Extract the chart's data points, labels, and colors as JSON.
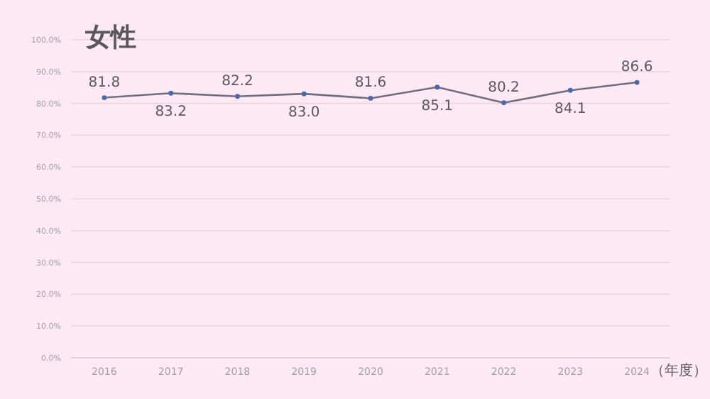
{
  "chart_data": {
    "type": "line",
    "title": "女性",
    "xlabel": "（年度）",
    "categories": [
      "2016",
      "2017",
      "2018",
      "2019",
      "2020",
      "2021",
      "2022",
      "2023",
      "2024"
    ],
    "series": [
      {
        "color": "#6e6e80",
        "values": [
          81.8,
          83.2,
          82.2,
          83.0,
          81.6,
          85.1,
          80.2,
          84.1,
          86.6
        ],
        "value_labels": [
          "81.8",
          "83.2",
          "82.2",
          "83.0",
          "81.6",
          "85.1",
          "80.2",
          "84.1",
          "86.6"
        ]
      }
    ],
    "ylim": [
      0,
      100
    ],
    "yticks": [
      {
        "value": 0,
        "label": "0.0%"
      },
      {
        "value": 10,
        "label": "10.0%"
      },
      {
        "value": 20,
        "label": "20.0%"
      },
      {
        "value": 30,
        "label": "30.0%"
      },
      {
        "value": 40,
        "label": "40.0%"
      },
      {
        "value": 50,
        "label": "50.0%"
      },
      {
        "value": 60,
        "label": "60.0%"
      },
      {
        "value": 70,
        "label": "70.0%"
      },
      {
        "value": 80,
        "label": "80.0%"
      },
      {
        "value": 90,
        "label": "90.0%"
      },
      {
        "value": 100,
        "label": "100.0%"
      }
    ],
    "grid": "y",
    "marker": "circle"
  }
}
